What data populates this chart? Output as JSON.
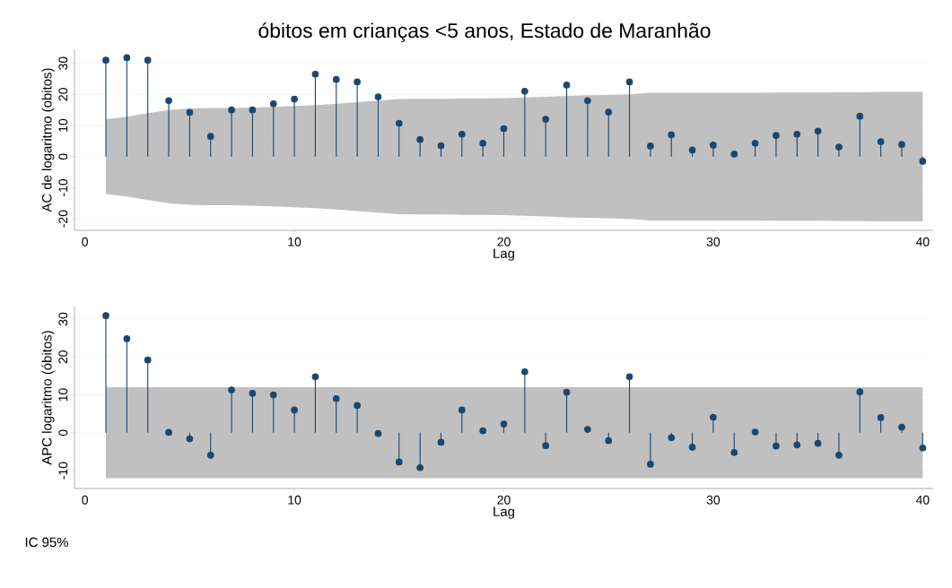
{
  "chart_data": [
    {
      "type": "lollipop",
      "title": "óbitos em crianças <5 anos, Estado de Maranhão",
      "xlabel": "Lag",
      "ylabel": "AC de logaritmo (obitos)",
      "x": [
        1,
        2,
        3,
        4,
        5,
        6,
        7,
        8,
        9,
        10,
        11,
        12,
        13,
        14,
        15,
        16,
        17,
        18,
        19,
        20,
        21,
        22,
        23,
        24,
        25,
        26,
        27,
        28,
        29,
        30,
        31,
        32,
        33,
        34,
        35,
        36,
        37,
        38,
        39,
        40
      ],
      "xlim": [
        -0.5,
        40.5
      ],
      "xticks": [
        0,
        10,
        20,
        30,
        40
      ],
      "ylim": [
        -23.7,
        34.5
      ],
      "yticks": [
        -20,
        -10,
        0,
        10,
        20,
        30
      ],
      "grid": "y",
      "marker": "circle",
      "series": [
        {
          "color": "#1a476f",
          "values": [
            31,
            31.8,
            31,
            18,
            14.2,
            6.5,
            15,
            15,
            17,
            18.5,
            26.5,
            24.8,
            24,
            19.2,
            10.7,
            5.5,
            3.5,
            7.2,
            4.3,
            9,
            21,
            12,
            23,
            18,
            14.3,
            24,
            3.4,
            7,
            2.1,
            3.7,
            0.8,
            4.3,
            6.8,
            7.2,
            8.2,
            3.1,
            13,
            4.8,
            3.9,
            -1.5
          ],
          "upper": [
            12,
            12.8,
            14,
            15,
            15.5,
            15.6,
            15.6,
            15.8,
            16,
            16.3,
            16.6,
            17,
            17.5,
            18,
            18.5,
            18.6,
            18.6,
            18.7,
            18.7,
            18.8,
            19,
            19.2,
            19.5,
            19.7,
            19.8,
            20,
            20.5,
            20.5,
            20.5,
            20.5,
            20.5,
            20.5,
            20.6,
            20.6,
            20.6,
            20.7,
            20.7,
            20.8,
            20.8,
            20.8
          ],
          "lower": [
            -12,
            -12.8,
            -14,
            -15,
            -15.5,
            -15.6,
            -15.6,
            -15.8,
            -16,
            -16.3,
            -16.6,
            -17,
            -17.5,
            -18,
            -18.5,
            -18.6,
            -18.6,
            -18.7,
            -18.7,
            -18.8,
            -19,
            -19.2,
            -19.5,
            -19.7,
            -19.8,
            -20,
            -20.5,
            -20.5,
            -20.5,
            -20.5,
            -20.5,
            -20.5,
            -20.6,
            -20.6,
            -20.6,
            -20.7,
            -20.7,
            -20.8,
            -20.8,
            -20.8
          ]
        }
      ]
    },
    {
      "type": "lollipop",
      "xlabel": "Lag",
      "ylabel": "APC logaritmo (óbitos)",
      "annotations": [
        "IC 95%"
      ],
      "x": [
        1,
        2,
        3,
        4,
        5,
        6,
        7,
        8,
        9,
        10,
        11,
        12,
        13,
        14,
        15,
        16,
        17,
        18,
        19,
        20,
        21,
        22,
        23,
        24,
        25,
        26,
        27,
        28,
        29,
        30,
        31,
        32,
        33,
        34,
        35,
        36,
        37,
        38,
        39,
        40
      ],
      "xlim": [
        -0.5,
        40.5
      ],
      "xticks": [
        0,
        10,
        20,
        30,
        40
      ],
      "ylim": [
        -14.7,
        33.3
      ],
      "yticks": [
        -10,
        0,
        10,
        20,
        30
      ],
      "grid": "y",
      "marker": "circle",
      "series": [
        {
          "color": "#1a476f",
          "values": [
            30.9,
            24.8,
            19.2,
            0.1,
            -1.6,
            -5.9,
            11.3,
            10.4,
            10,
            6,
            14.8,
            9,
            7.2,
            -0.2,
            -7.7,
            -9.2,
            -2.5,
            6,
            0.5,
            2.3,
            16.1,
            -3.4,
            10.7,
            0.9,
            -2.1,
            14.8,
            -8.3,
            -1.3,
            -3.8,
            4.1,
            -5.2,
            0.2,
            -3.5,
            -3.2,
            -2.8,
            -5.9,
            10.8,
            4,
            1.5,
            -4
          ],
          "upper": [
            12,
            12,
            12,
            12,
            12,
            12,
            12,
            12,
            12,
            12,
            12,
            12,
            12,
            12,
            12,
            12,
            12,
            12,
            12,
            12,
            12,
            12,
            12,
            12,
            12,
            12,
            12,
            12,
            12,
            12,
            12,
            12,
            12,
            12,
            12,
            12,
            12,
            12,
            12,
            12
          ],
          "lower": [
            -12,
            -12,
            -12,
            -12,
            -12,
            -12,
            -12,
            -12,
            -12,
            -12,
            -12,
            -12,
            -12,
            -12,
            -12,
            -12,
            -12,
            -12,
            -12,
            -12,
            -12,
            -12,
            -12,
            -12,
            -12,
            -12,
            -12,
            -12,
            -12,
            -12,
            -12,
            -12,
            -12,
            -12,
            -12,
            -12,
            -12,
            -12,
            -12,
            -12
          ]
        }
      ]
    }
  ]
}
